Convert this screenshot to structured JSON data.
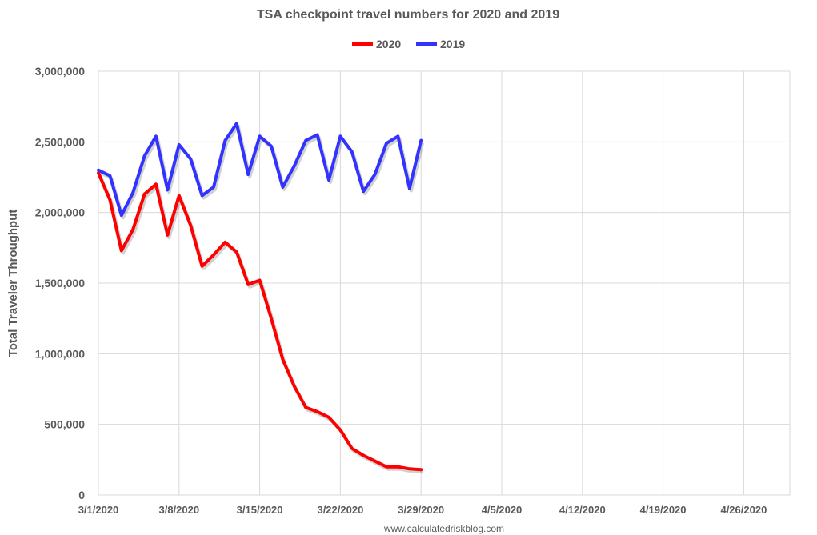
{
  "chart_data": {
    "type": "line",
    "title": "TSA checkpoint travel numbers for 2020 and 2019",
    "xlabel": "",
    "ylabel": "Total Traveler Throughput",
    "ylim": [
      0,
      3000000
    ],
    "xlim": [
      "3/1/2020",
      "4/30/2020"
    ],
    "y_ticks": [
      "0",
      "500,000",
      "1,000,000",
      "1,500,000",
      "2,000,000",
      "2,500,000",
      "3,000,000"
    ],
    "x_ticks": [
      "3/1/2020",
      "3/8/2020",
      "3/15/2020",
      "3/22/2020",
      "3/29/2020",
      "4/5/2020",
      "4/12/2020",
      "4/19/2020",
      "4/26/2020"
    ],
    "grid": true,
    "legend": "top",
    "x": [
      "3/1/2020",
      "3/2/2020",
      "3/3/2020",
      "3/4/2020",
      "3/5/2020",
      "3/6/2020",
      "3/7/2020",
      "3/8/2020",
      "3/9/2020",
      "3/10/2020",
      "3/11/2020",
      "3/12/2020",
      "3/13/2020",
      "3/14/2020",
      "3/15/2020",
      "3/16/2020",
      "3/17/2020",
      "3/18/2020",
      "3/19/2020",
      "3/20/2020",
      "3/21/2020",
      "3/22/2020",
      "3/23/2020",
      "3/24/2020",
      "3/25/2020",
      "3/26/2020",
      "3/27/2020",
      "3/28/2020",
      "3/29/2020"
    ],
    "series": [
      {
        "name": "2020",
        "color": "#ff0000",
        "values": [
          2280000,
          2090000,
          1730000,
          1880000,
          2130000,
          2200000,
          1840000,
          2120000,
          1910000,
          1620000,
          1700000,
          1790000,
          1720000,
          1490000,
          1520000,
          1250000,
          960000,
          770000,
          620000,
          590000,
          550000,
          460000,
          330000,
          280000,
          240000,
          200000,
          200000,
          185000,
          180000
        ]
      },
      {
        "name": "2019",
        "color": "#3333ff",
        "values": [
          2300000,
          2260000,
          1980000,
          2140000,
          2400000,
          2540000,
          2160000,
          2480000,
          2380000,
          2120000,
          2180000,
          2510000,
          2630000,
          2270000,
          2540000,
          2470000,
          2180000,
          2330000,
          2510000,
          2550000,
          2230000,
          2540000,
          2430000,
          2150000,
          2270000,
          2490000,
          2540000,
          2170000,
          2510000
        ]
      }
    ],
    "source": "www.calculatedriskblog.com"
  }
}
